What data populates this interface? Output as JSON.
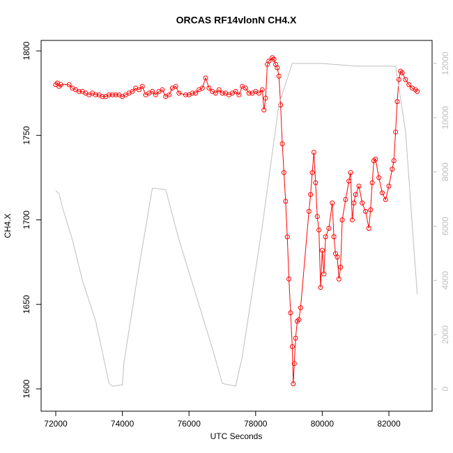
{
  "chart_data": {
    "type": "line",
    "title": "ORCAS RF14vlonN CH4.X",
    "x_label": "UTC Seconds",
    "y_label": "CH4.X",
    "xlim": [
      71561,
      83297
    ],
    "xticks": [
      72000,
      74000,
      76000,
      78000,
      80000,
      82000
    ],
    "ylim": [
      1586.8,
      1806.2
    ],
    "yticks": [
      1600,
      1650,
      1700,
      1750,
      1800
    ],
    "y2lim": [
      -822,
      12848
    ],
    "y2ticks": [
      0,
      2000,
      4000,
      6000,
      8000,
      10000,
      12000
    ],
    "series": [
      {
        "color": "#ff0000",
        "marker": "circle",
        "x": [
          72000,
          72050,
          72100,
          72150,
          72400,
          72500,
          72600,
          72700,
          72800,
          72900,
          73000,
          73100,
          73200,
          73300,
          73400,
          73500,
          73600,
          73700,
          73800,
          73900,
          74000,
          74100,
          74200,
          74300,
          74400,
          74500,
          74600,
          74700,
          74800,
          74900,
          75000,
          75100,
          75200,
          75300,
          75400,
          75500,
          75600,
          75700,
          75900,
          76000,
          76100,
          76200,
          76300,
          76400,
          76500,
          76600,
          76700,
          76800,
          76900,
          77000,
          77100,
          77200,
          77300,
          77400,
          77500,
          77600,
          77700,
          77800,
          77900,
          78000,
          78100,
          78200,
          78250,
          78300,
          78350,
          78400,
          78500,
          78550,
          78600,
          78650,
          78700,
          78750,
          78800,
          78850,
          78900,
          78950,
          79000,
          79050,
          79100,
          79130,
          79160,
          79200,
          79250,
          79300,
          79350,
          79600,
          79650,
          79700,
          79750,
          79800,
          79850,
          79900,
          79950,
          80000,
          80050,
          80100,
          80200,
          80300,
          80350,
          80400,
          80450,
          80500,
          80550,
          80600,
          80700,
          80800,
          80850,
          80900,
          80950,
          81000,
          81100,
          81200,
          81300,
          81400,
          81450,
          81500,
          81550,
          81600,
          81700,
          81800,
          81900,
          82000,
          82100,
          82150,
          82200,
          82250,
          82300,
          82350,
          82400,
          82500,
          82600,
          82700,
          82800,
          82850
        ],
        "values": [
          1780,
          1781,
          1779,
          1780,
          1780,
          1778,
          1777,
          1776,
          1776,
          1775,
          1774,
          1775,
          1774,
          1774,
          1773,
          1773,
          1774,
          1774,
          1774,
          1774,
          1773,
          1774,
          1775,
          1776,
          1778,
          1777,
          1779,
          1774,
          1775,
          1776,
          1774,
          1776,
          1777,
          1773,
          1774,
          1778,
          1779,
          1775,
          1774,
          1774,
          1775,
          1775,
          1777,
          1778,
          1784,
          1778,
          1776,
          1775,
          1777,
          1775,
          1775,
          1774,
          1775,
          1776,
          1774,
          1779,
          1778,
          1775,
          1775,
          1776,
          1775,
          1777,
          1765,
          1772,
          1792,
          1794,
          1796,
          1795,
          1792,
          1790,
          1785,
          1768,
          1745,
          1728,
          1711,
          1690,
          1665,
          1645,
          1625,
          1603,
          1615,
          1630,
          1640,
          1641,
          1648,
          1705,
          1715,
          1728,
          1740,
          1722,
          1702,
          1694,
          1660,
          1682,
          1668,
          1690,
          1695,
          1710,
          1690,
          1680,
          1678,
          1665,
          1672,
          1700,
          1712,
          1723,
          1728,
          1700,
          1710,
          1715,
          1720,
          1710,
          1705,
          1695,
          1706,
          1722,
          1735,
          1736,
          1725,
          1716,
          1712,
          1720,
          1730,
          1735,
          1752,
          1770,
          1783,
          1788,
          1787,
          1783,
          1780,
          1778,
          1777,
          1776
        ]
      },
      {
        "color": "#bebebe",
        "axis": "y2",
        "x": [
          72000,
          72100,
          72200,
          72500,
          72800,
          73200,
          73600,
          73700,
          74000,
          74050,
          74500,
          74900,
          75300,
          75700,
          76200,
          76700,
          77000,
          77400,
          77600,
          78200,
          78700,
          79100,
          80000,
          81000,
          82200,
          82500,
          82850
        ],
        "values": [
          7300,
          7200,
          6700,
          5500,
          4000,
          2500,
          200,
          100,
          150,
          1000,
          4500,
          7400,
          7350,
          5500,
          3500,
          1500,
          200,
          100,
          1200,
          6000,
          10500,
          12000,
          12000,
          11900,
          11900,
          9500,
          3500
        ]
      }
    ]
  }
}
